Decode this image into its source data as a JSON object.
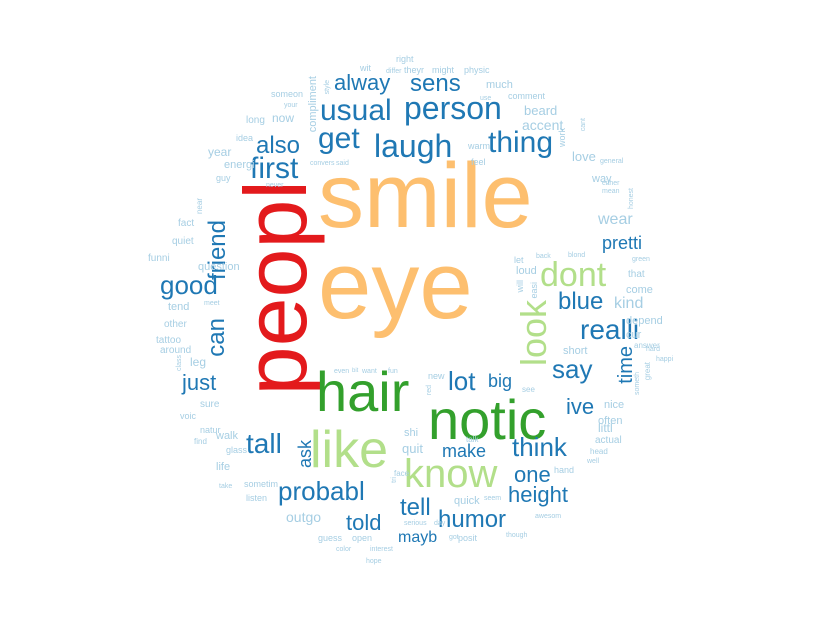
{
  "colors": {
    "red": "#e31a1c",
    "orange": "#fdbf6f",
    "green": "#33a02c",
    "lightgreen": "#b2df8a",
    "blue": "#1f78b4",
    "lightblue": "#a6cee3"
  },
  "words": [
    {
      "text": "smile",
      "color": "orange"
    },
    {
      "text": "eye",
      "color": "orange"
    },
    {
      "text": "peopl",
      "color": "red"
    },
    {
      "text": "hair",
      "color": "green"
    },
    {
      "text": "notic",
      "color": "green"
    },
    {
      "text": "like",
      "color": "lightgreen"
    },
    {
      "text": "know",
      "color": "lightgreen"
    },
    {
      "text": "look",
      "color": "lightgreen"
    },
    {
      "text": "dont",
      "color": "lightgreen"
    },
    {
      "text": "laugh",
      "color": "blue"
    },
    {
      "text": "person",
      "color": "blue"
    },
    {
      "text": "thing",
      "color": "blue"
    },
    {
      "text": "usual",
      "color": "blue"
    },
    {
      "text": "get",
      "color": "blue"
    },
    {
      "text": "first",
      "color": "blue"
    },
    {
      "text": "also",
      "color": "blue"
    },
    {
      "text": "sens",
      "color": "blue"
    },
    {
      "text": "alway",
      "color": "blue"
    },
    {
      "text": "friend",
      "color": "blue"
    },
    {
      "text": "good",
      "color": "blue"
    },
    {
      "text": "can",
      "color": "blue"
    },
    {
      "text": "just",
      "color": "blue"
    },
    {
      "text": "realli",
      "color": "blue"
    },
    {
      "text": "blue",
      "color": "blue"
    },
    {
      "text": "say",
      "color": "blue"
    },
    {
      "text": "pretti",
      "color": "blue"
    },
    {
      "text": "lot",
      "color": "blue"
    },
    {
      "text": "big",
      "color": "blue"
    },
    {
      "text": "ive",
      "color": "blue"
    },
    {
      "text": "think",
      "color": "blue"
    },
    {
      "text": "tall",
      "color": "blue"
    },
    {
      "text": "ask",
      "color": "blue"
    },
    {
      "text": "probabl",
      "color": "blue"
    },
    {
      "text": "make",
      "color": "blue"
    },
    {
      "text": "tell",
      "color": "blue"
    },
    {
      "text": "told",
      "color": "blue"
    },
    {
      "text": "humor",
      "color": "blue"
    },
    {
      "text": "height",
      "color": "blue"
    },
    {
      "text": "one",
      "color": "blue"
    },
    {
      "text": "mayb",
      "color": "blue"
    },
    {
      "text": "time",
      "color": "blue"
    },
    {
      "text": "wear",
      "color": "lightblue"
    },
    {
      "text": "kind",
      "color": "lightblue"
    },
    {
      "text": "accent",
      "color": "lightblue"
    },
    {
      "text": "love",
      "color": "lightblue"
    },
    {
      "text": "way",
      "color": "lightblue"
    },
    {
      "text": "beard",
      "color": "lightblue"
    },
    {
      "text": "much",
      "color": "lightblue"
    },
    {
      "text": "comment",
      "color": "lightblue"
    },
    {
      "text": "physic",
      "color": "lightblue"
    },
    {
      "text": "might",
      "color": "lightblue"
    },
    {
      "text": "theyr",
      "color": "lightblue"
    },
    {
      "text": "right",
      "color": "lightblue"
    },
    {
      "text": "differ",
      "color": "lightblue"
    },
    {
      "text": "wit",
      "color": "lightblue"
    },
    {
      "text": "style",
      "color": "lightblue"
    },
    {
      "text": "compliment",
      "color": "lightblue"
    },
    {
      "text": "someon",
      "color": "lightblue"
    },
    {
      "text": "your",
      "color": "lightblue"
    },
    {
      "text": "now",
      "color": "lightblue"
    },
    {
      "text": "long",
      "color": "lightblue"
    },
    {
      "text": "idea",
      "color": "lightblue"
    },
    {
      "text": "year",
      "color": "lightblue"
    },
    {
      "text": "energi",
      "color": "lightblue"
    },
    {
      "text": "guy",
      "color": "lightblue"
    },
    {
      "text": "never",
      "color": "lightblue"
    },
    {
      "text": "convers",
      "color": "lightblue"
    },
    {
      "text": "said",
      "color": "lightblue"
    },
    {
      "text": "warm",
      "color": "lightblue"
    },
    {
      "text": "feel",
      "color": "lightblue"
    },
    {
      "text": "use",
      "color": "lightblue"
    },
    {
      "text": "near",
      "color": "lightblue"
    },
    {
      "text": "fact",
      "color": "lightblue"
    },
    {
      "text": "quiet",
      "color": "lightblue"
    },
    {
      "text": "funni",
      "color": "lightblue"
    },
    {
      "text": "question",
      "color": "lightblue"
    },
    {
      "text": "tend",
      "color": "lightblue"
    },
    {
      "text": "meet",
      "color": "lightblue"
    },
    {
      "text": "other",
      "color": "lightblue"
    },
    {
      "text": "tattoo",
      "color": "lightblue"
    },
    {
      "text": "around",
      "color": "lightblue"
    },
    {
      "text": "class",
      "color": "lightblue"
    },
    {
      "text": "leg",
      "color": "lightblue"
    },
    {
      "text": "sure",
      "color": "lightblue"
    },
    {
      "text": "voic",
      "color": "lightblue"
    },
    {
      "text": "natur",
      "color": "lightblue"
    },
    {
      "text": "find",
      "color": "lightblue"
    },
    {
      "text": "walk",
      "color": "lightblue"
    },
    {
      "text": "glass",
      "color": "lightblue"
    },
    {
      "text": "life",
      "color": "lightblue"
    },
    {
      "text": "sometim",
      "color": "lightblue"
    },
    {
      "text": "take",
      "color": "lightblue"
    },
    {
      "text": "listen",
      "color": "lightblue"
    },
    {
      "text": "outgo",
      "color": "lightblue"
    },
    {
      "text": "guess",
      "color": "lightblue"
    },
    {
      "text": "open",
      "color": "lightblue"
    },
    {
      "text": "color",
      "color": "lightblue"
    },
    {
      "text": "interest",
      "color": "lightblue"
    },
    {
      "text": "hope",
      "color": "lightblue"
    },
    {
      "text": "serious",
      "color": "lightblue"
    },
    {
      "text": "day",
      "color": "lightblue"
    },
    {
      "text": "got",
      "color": "lightblue"
    },
    {
      "text": "posit",
      "color": "lightblue"
    },
    {
      "text": "though",
      "color": "lightblue"
    },
    {
      "text": "awesom",
      "color": "lightblue"
    },
    {
      "text": "hand",
      "color": "lightblue"
    },
    {
      "text": "seem",
      "color": "lightblue"
    },
    {
      "text": "quick",
      "color": "lightblue"
    },
    {
      "text": "face",
      "color": "lightblue"
    },
    {
      "text": "tri",
      "color": "lightblue"
    },
    {
      "text": "quit",
      "color": "lightblue"
    },
    {
      "text": "talk",
      "color": "lightblue"
    },
    {
      "text": "shi",
      "color": "lightblue"
    },
    {
      "text": "well",
      "color": "lightblue"
    },
    {
      "text": "head",
      "color": "lightblue"
    },
    {
      "text": "actual",
      "color": "lightblue"
    },
    {
      "text": "littl",
      "color": "lightblue"
    },
    {
      "text": "often",
      "color": "lightblue"
    },
    {
      "text": "nice",
      "color": "lightblue"
    },
    {
      "text": "someth",
      "color": "lightblue"
    },
    {
      "text": "great",
      "color": "lightblue"
    },
    {
      "text": "happi",
      "color": "lightblue"
    },
    {
      "text": "hard",
      "color": "lightblue"
    },
    {
      "text": "answer",
      "color": "lightblue"
    },
    {
      "text": "cur",
      "color": "lightblue"
    },
    {
      "text": "depend",
      "color": "lightblue"
    },
    {
      "text": "come",
      "color": "lightblue"
    },
    {
      "text": "that",
      "color": "lightblue"
    },
    {
      "text": "green",
      "color": "lightblue"
    },
    {
      "text": "honest",
      "color": "lightblue"
    },
    {
      "text": "mean",
      "color": "lightblue"
    },
    {
      "text": "either",
      "color": "lightblue"
    },
    {
      "text": "general",
      "color": "lightblue"
    },
    {
      "text": "work",
      "color": "lightblue"
    },
    {
      "text": "cant",
      "color": "lightblue"
    },
    {
      "text": "blond",
      "color": "lightblue"
    },
    {
      "text": "back",
      "color": "lightblue"
    },
    {
      "text": "let",
      "color": "lightblue"
    },
    {
      "text": "loud",
      "color": "lightblue"
    },
    {
      "text": "easi",
      "color": "lightblue"
    },
    {
      "text": "will",
      "color": "lightblue"
    },
    {
      "text": "short",
      "color": "lightblue"
    },
    {
      "text": "see",
      "color": "lightblue"
    },
    {
      "text": "even",
      "color": "lightblue"
    },
    {
      "text": "bit",
      "color": "lightblue"
    },
    {
      "text": "want",
      "color": "lightblue"
    },
    {
      "text": "fun",
      "color": "lightblue"
    },
    {
      "text": "new",
      "color": "lightblue"
    },
    {
      "text": "red",
      "color": "lightblue"
    },
    {
      "text": "ill",
      "color": "lightblue"
    }
  ]
}
